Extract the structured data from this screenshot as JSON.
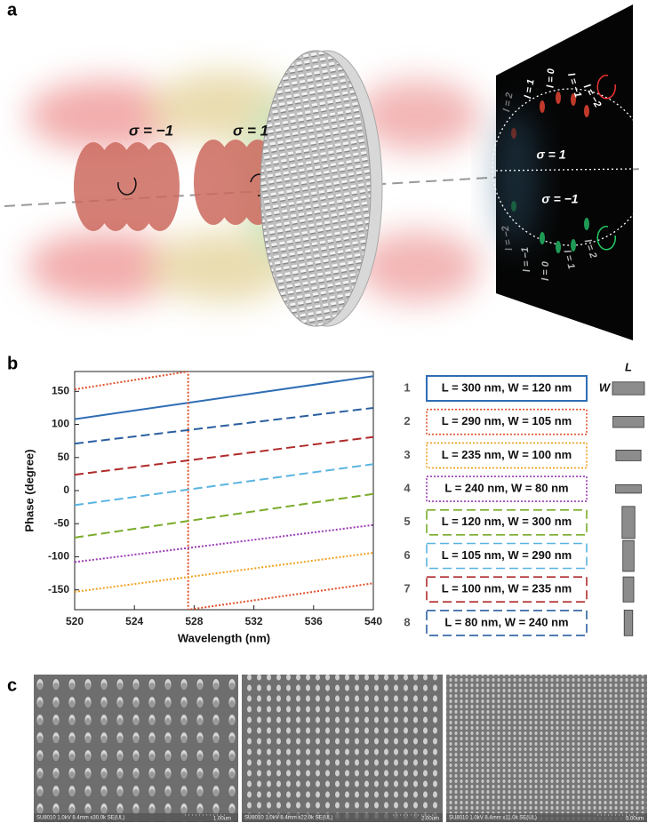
{
  "figure_labels": [
    "a",
    "b",
    "c"
  ],
  "panel_a": {
    "beam_labels": [
      "σ = −1",
      "σ = 1"
    ],
    "screen_labels": [
      "σ = 1",
      "σ = −1"
    ],
    "top_modes": [
      "l = 2",
      "l = 1",
      "l = 0",
      "l = −1",
      "l = −2"
    ],
    "bottom_modes": [
      "l = −2",
      "l = −1",
      "l = 0",
      "l = 1",
      "l = 2"
    ]
  },
  "chart_data": {
    "type": "line",
    "xlabel": "Wavelength (nm)",
    "ylabel": "Phase (degree)",
    "xlim": [
      520,
      540
    ],
    "ylim": [
      -180,
      180
    ],
    "xticks": [
      520,
      524,
      528,
      532,
      536,
      540
    ],
    "yticks": [
      -150,
      -100,
      -50,
      0,
      50,
      100,
      150
    ],
    "icon_axis_labels": [
      "L",
      "W"
    ],
    "series": [
      {
        "label": "1",
        "name": "L = 300 nm, W = 120 nm",
        "L": 300,
        "W": 120,
        "color": "#2f6db5",
        "dash": "solid",
        "x": [
          520,
          540
        ],
        "values": [
          108,
          173
        ]
      },
      {
        "label": "2",
        "name": "L = 290 nm, W = 105 nm",
        "L": 290,
        "W": 105,
        "color": "#e0502a",
        "dash": "dotted",
        "x": [
          520,
          527.6,
          527.6,
          540
        ],
        "values": [
          153,
          180,
          -180,
          -140
        ]
      },
      {
        "label": "3",
        "name": "L = 235 nm, W = 100 nm",
        "L": 235,
        "W": 100,
        "color": "#f0a020",
        "dash": "dotted",
        "x": [
          520,
          540
        ],
        "values": [
          -153,
          -94
        ]
      },
      {
        "label": "4",
        "name": "L = 240 nm, W = 80 nm",
        "L": 240,
        "W": 80,
        "color": "#9b3bb5",
        "dash": "dotted",
        "x": [
          520,
          540
        ],
        "values": [
          -108,
          -52
        ]
      },
      {
        "label": "5",
        "name": "L = 120 nm, W = 300 nm",
        "L": 120,
        "W": 300,
        "color": "#7aab2a",
        "dash": "dashed",
        "x": [
          520,
          540
        ],
        "values": [
          -71,
          -5
        ]
      },
      {
        "label": "6",
        "name": "L = 105 nm, W = 290 nm",
        "L": 105,
        "W": 290,
        "color": "#5ab4e0",
        "dash": "dashed",
        "x": [
          520,
          540
        ],
        "values": [
          -22,
          40
        ]
      },
      {
        "label": "7",
        "name": "L = 100 nm, W = 235 nm",
        "L": 100,
        "W": 235,
        "color": "#b02a2a",
        "dash": "dashed",
        "x": [
          520,
          540
        ],
        "values": [
          24,
          81
        ]
      },
      {
        "label": "8",
        "name": "L = 80 nm, W = 240 nm",
        "L": 80,
        "W": 240,
        "color": "#2a5fa0",
        "dash": "dashed",
        "x": [
          520,
          540
        ],
        "values": [
          71,
          125
        ]
      }
    ]
  },
  "panel_c": {
    "images": [
      {
        "caption": "SU8010 1.0kV 8.4mm x30.0k SE(UL)",
        "scale": "1.00um"
      },
      {
        "caption": "SU8010 1.0kV 8.4mm x22.0k SE(UL)",
        "scale": "2.00um"
      },
      {
        "caption": "SU8010 1.0kV 8.4mm x11.0k SE(UL)",
        "scale": "5.00um"
      }
    ]
  }
}
